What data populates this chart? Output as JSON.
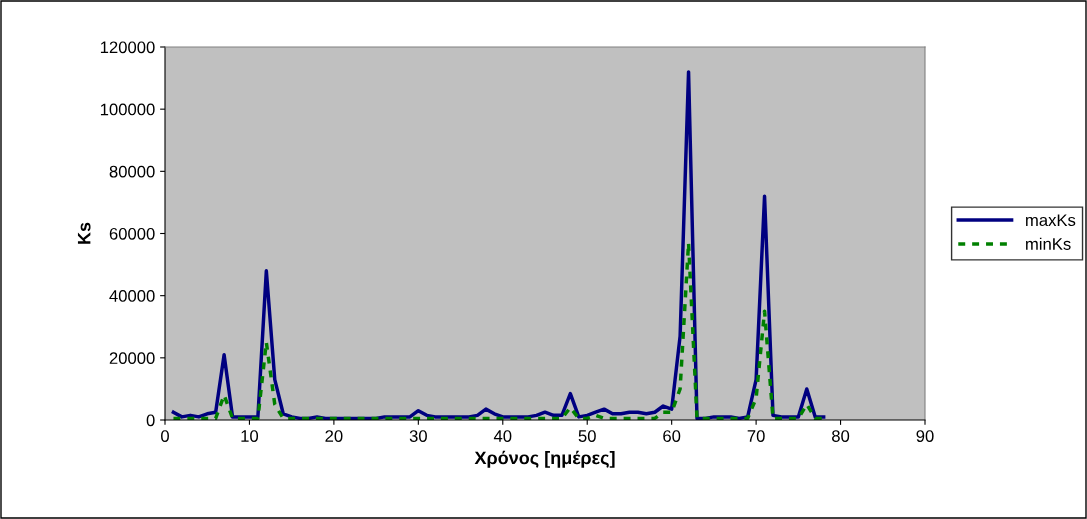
{
  "chart_data": {
    "type": "line",
    "xlabel": "Χρόνος [ημέρες]",
    "ylabel": "Ks",
    "x": [
      1,
      2,
      3,
      4,
      5,
      6,
      7,
      8,
      9,
      10,
      11,
      12,
      13,
      14,
      15,
      16,
      17,
      18,
      19,
      20,
      21,
      22,
      23,
      24,
      25,
      26,
      27,
      28,
      29,
      30,
      31,
      32,
      33,
      34,
      35,
      36,
      37,
      38,
      39,
      40,
      41,
      42,
      43,
      44,
      45,
      46,
      47,
      48,
      49,
      50,
      51,
      52,
      53,
      54,
      55,
      56,
      57,
      58,
      59,
      60,
      61,
      62,
      63,
      64,
      65,
      66,
      67,
      68,
      69,
      70,
      71,
      72,
      73,
      74,
      75,
      76,
      77,
      78
    ],
    "series": [
      {
        "name": "maxKs",
        "color": "#000080",
        "line_style": "solid",
        "values": [
          2500,
          1000,
          1500,
          1000,
          2000,
          2500,
          21000,
          1000,
          1000,
          1000,
          1000,
          48000,
          13000,
          2000,
          1000,
          500,
          500,
          1000,
          500,
          500,
          500,
          500,
          500,
          500,
          500,
          1000,
          1000,
          1000,
          1000,
          3000,
          1500,
          1000,
          1000,
          1000,
          1000,
          1000,
          1500,
          3500,
          2000,
          1000,
          1000,
          1000,
          1000,
          1500,
          2500,
          1500,
          1500,
          8500,
          1000,
          1500,
          2500,
          3500,
          2000,
          2000,
          2500,
          2500,
          2000,
          2500,
          4500,
          3500,
          27000,
          112000,
          500,
          500,
          1000,
          1000,
          1000,
          500,
          1000,
          13000,
          72000,
          1500,
          1000,
          1000,
          1000,
          10000,
          1000,
          1000
        ]
      },
      {
        "name": "minKs",
        "color": "#008000",
        "line_style": "dashed",
        "values": [
          500,
          500,
          500,
          500,
          500,
          500,
          8000,
          500,
          500,
          500,
          500,
          25000,
          5000,
          500,
          500,
          500,
          500,
          500,
          500,
          500,
          500,
          500,
          500,
          500,
          500,
          500,
          500,
          500,
          500,
          500,
          500,
          500,
          500,
          500,
          500,
          500,
          500,
          500,
          500,
          500,
          500,
          500,
          500,
          500,
          500,
          500,
          500,
          4000,
          500,
          500,
          1500,
          500,
          500,
          500,
          500,
          500,
          500,
          500,
          2500,
          2500,
          10000,
          57000,
          500,
          500,
          500,
          500,
          500,
          500,
          500,
          7000,
          35000,
          500,
          500,
          500,
          500,
          5000,
          500,
          500
        ]
      }
    ],
    "xlim": [
      0,
      90
    ],
    "xticks": [
      0,
      10,
      20,
      30,
      40,
      50,
      60,
      70,
      80,
      90
    ],
    "ylim": [
      0,
      120000
    ],
    "yticks": [
      0,
      20000,
      40000,
      60000,
      80000,
      100000,
      120000
    ],
    "grid": false,
    "legend": "right",
    "marker": "none"
  }
}
